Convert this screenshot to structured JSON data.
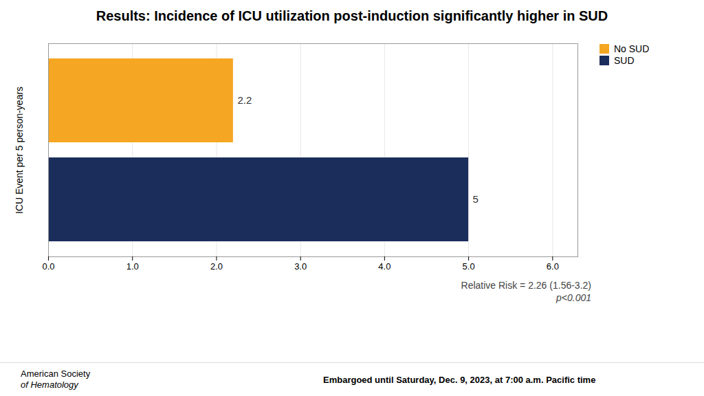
{
  "chart_data": {
    "type": "bar",
    "orientation": "horizontal",
    "title": "Results: Incidence of ICU utilization post-induction significantly higher in SUD",
    "y_label": "ICU Event per 5 person-years",
    "categories": [
      "No SUD",
      "SUD"
    ],
    "values": [
      2.2,
      5
    ],
    "colors": [
      "#F5A623",
      "#1B2D5B"
    ],
    "xlim": [
      0,
      6.3
    ],
    "xticks": [
      0,
      1,
      2,
      3,
      4,
      5,
      6
    ],
    "grid": true,
    "legend": "right",
    "data_labels": true,
    "tick_labels": "x",
    "annotations": [
      "Relative Risk = 2.26 (1.56-3.2)",
      "p<0.001",
      "American Society",
      "of Hematology",
      "Embargoed until Saturday, Dec. 9, 2023, at 7:00 a.m. Pacific time"
    ]
  }
}
